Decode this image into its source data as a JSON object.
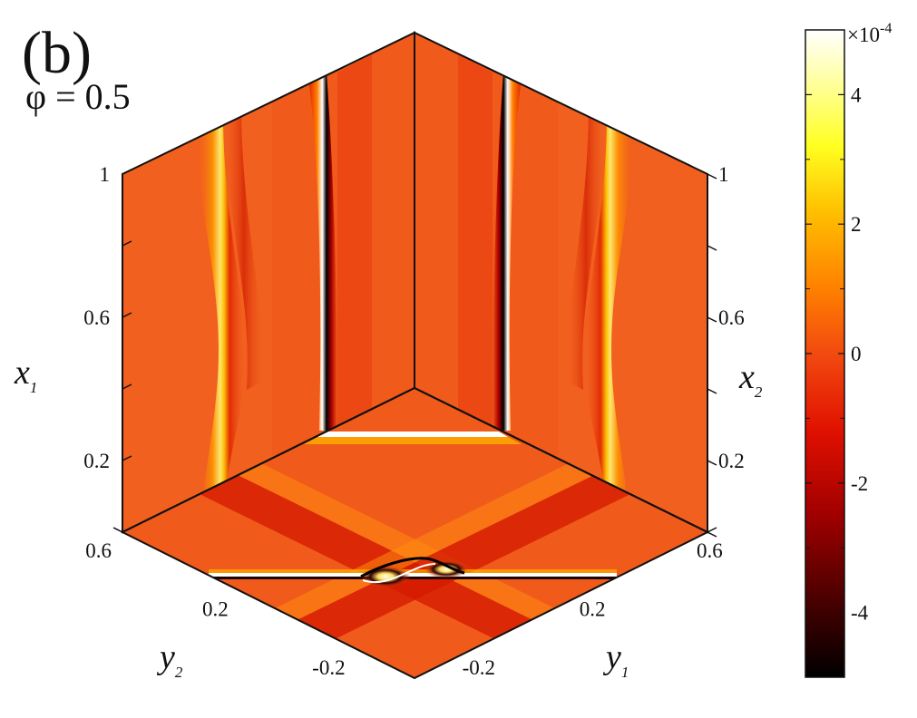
{
  "panel_label": "(b)",
  "parameter": {
    "symbol": "φ",
    "eq": "=",
    "value": "0.5"
  },
  "colors": {
    "field_base": "#f05a1a",
    "colormap": [
      "#000000",
      "#6e0000",
      "#d60000",
      "#f24000",
      "#ff8a00",
      "#ffd000",
      "#ffff40",
      "#ffffff"
    ]
  },
  "chart_data": {
    "type": "heatmap",
    "description_colorbar_range": [
      -5,
      5
    ],
    "colorbar": {
      "multiplier_base": "×10",
      "multiplier_exp": "-4",
      "range": [
        -5,
        5
      ],
      "ticks": [
        {
          "value": 4,
          "label": "4"
        },
        {
          "value": 2,
          "label": "2"
        },
        {
          "value": 0,
          "label": "0"
        },
        {
          "value": -2,
          "label": "-2"
        },
        {
          "value": -4,
          "label": "-4"
        }
      ]
    },
    "faces": [
      {
        "name": "left face (y2 = 0.6)",
        "vertical_axis": {
          "var": "x",
          "sub": "1",
          "range": [
            0,
            1
          ],
          "ticks": [
            {
              "value": 1.0,
              "label": "1"
            },
            {
              "value": 0.8,
              "label": ""
            },
            {
              "value": 0.6,
              "label": "0.6"
            },
            {
              "value": 0.4,
              "label": ""
            },
            {
              "value": 0.2,
              "label": "0.2"
            },
            {
              "value": 0.0,
              "label": ""
            }
          ]
        }
      },
      {
        "name": "right face (y1 = 0.6)",
        "vertical_axis": {
          "var": "x",
          "sub": "2",
          "range": [
            0,
            1
          ],
          "ticks": [
            {
              "value": 1.0,
              "label": "1"
            },
            {
              "value": 0.8,
              "label": ""
            },
            {
              "value": 0.6,
              "label": "0.6"
            },
            {
              "value": 0.4,
              "label": ""
            },
            {
              "value": 0.2,
              "label": "0.2"
            },
            {
              "value": 0.0,
              "label": ""
            }
          ]
        }
      },
      {
        "name": "bottom face (x = 0)",
        "axes": [
          {
            "var": "y",
            "sub": "2",
            "range": [
              -0.4,
              0.6
            ],
            "ticks": [
              {
                "value": 0.6,
                "label": "0.6"
              },
              {
                "value": 0.4,
                "label": ""
              },
              {
                "value": 0.2,
                "label": "0.2"
              },
              {
                "value": 0.0,
                "label": ""
              },
              {
                "value": -0.2,
                "label": "-0.2"
              },
              {
                "value": -0.4,
                "label": ""
              }
            ]
          },
          {
            "var": "y",
            "sub": "1",
            "range": [
              -0.4,
              0.6
            ],
            "ticks": [
              {
                "value": 0.6,
                "label": "0.6"
              },
              {
                "value": 0.4,
                "label": ""
              },
              {
                "value": 0.2,
                "label": "0.2"
              },
              {
                "value": 0.0,
                "label": ""
              },
              {
                "value": -0.2,
                "label": "-0.2"
              },
              {
                "value": -0.4,
                "label": ""
              }
            ]
          }
        ]
      }
    ]
  }
}
